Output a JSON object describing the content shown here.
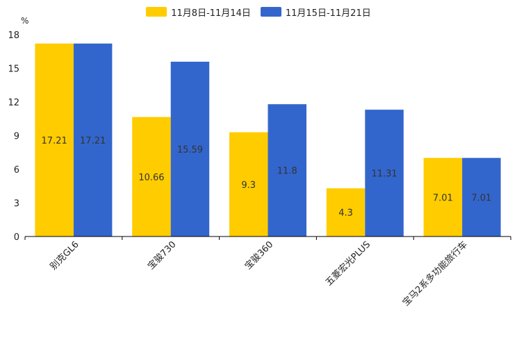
{
  "chart_data": {
    "type": "bar",
    "title": "",
    "xlabel": "",
    "ylabel": "%",
    "ylim": [
      0,
      18
    ],
    "yticks": [
      0,
      3,
      6,
      9,
      12,
      15,
      18
    ],
    "categories": [
      "别克GL6",
      "宝骏730",
      "宝骏360",
      "五菱宏光PLUS",
      "宝马2系多功能旅行车"
    ],
    "series": [
      {
        "name": "11月8日-11月14日",
        "color": "#FFCC00",
        "values": [
          17.21,
          10.66,
          9.3,
          4.3,
          7.01
        ]
      },
      {
        "name": "11月15日-11月21日",
        "color": "#3366CC",
        "values": [
          17.21,
          15.59,
          11.8,
          11.31,
          7.01
        ]
      }
    ],
    "legend_position": "top-center",
    "grid": false
  }
}
